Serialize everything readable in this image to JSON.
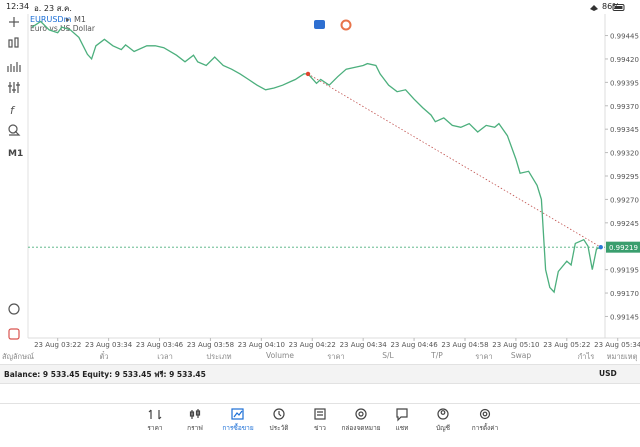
{
  "status_bar": {
    "time": "12:34",
    "date": "อ. 23 ส.ค.",
    "battery": "86%"
  },
  "chart_header": {
    "symbol": "EURUSDm",
    "timeframe": "M1",
    "description": "Euro vs US Dollar"
  },
  "chart": {
    "type": "line",
    "color": "#4caf7d",
    "x": [
      "03:16",
      "03:18",
      "03:20",
      "03:22",
      "03:23",
      "03:25",
      "03:27",
      "03:29",
      "03:30",
      "03:31",
      "03:33",
      "03:35",
      "03:37",
      "03:38",
      "03:40",
      "03:43",
      "03:45",
      "03:47",
      "03:50",
      "03:52",
      "03:54",
      "03:55",
      "03:57",
      "03:59",
      "04:01",
      "04:03",
      "04:05",
      "04:07",
      "04:09",
      "04:11",
      "04:13",
      "04:15",
      "04:17",
      "04:18",
      "04:20",
      "04:21",
      "04:23",
      "04:24",
      "04:26",
      "04:28",
      "04:30",
      "04:32",
      "04:34",
      "04:35",
      "04:37",
      "04:38",
      "04:40",
      "04:42",
      "04:44",
      "04:46",
      "04:48",
      "04:50",
      "04:51",
      "04:53",
      "04:55",
      "04:57",
      "04:59",
      "05:01",
      "05:03",
      "05:05",
      "05:06",
      "05:08",
      "05:10",
      "05:11",
      "05:13",
      "05:15",
      "05:16",
      "05:17",
      "05:18",
      "05:19",
      "05:20",
      "05:22",
      "05:23",
      "05:24",
      "05:26",
      "05:27",
      "05:28",
      "05:29",
      "05:30"
    ],
    "values": [
      0.99454,
      0.9946,
      0.99451,
      0.99448,
      0.99454,
      0.99451,
      0.99443,
      0.99425,
      0.9942,
      0.99434,
      0.99441,
      0.99434,
      0.9943,
      0.99435,
      0.99428,
      0.99434,
      0.99434,
      0.99432,
      0.99424,
      0.99417,
      0.99424,
      0.99417,
      0.99413,
      0.99422,
      0.99413,
      0.99409,
      0.99404,
      0.99398,
      0.99392,
      0.99387,
      0.99389,
      0.99392,
      0.99396,
      0.99398,
      0.99404,
      0.99404,
      0.99394,
      0.99398,
      0.99392,
      0.99401,
      0.99409,
      0.99411,
      0.99413,
      0.99415,
      0.99413,
      0.99404,
      0.99392,
      0.99385,
      0.99387,
      0.99377,
      0.99368,
      0.9936,
      0.99353,
      0.99357,
      0.99349,
      0.99347,
      0.99351,
      0.99342,
      0.99349,
      0.99347,
      0.99351,
      0.99338,
      0.99313,
      0.99298,
      0.993,
      0.99285,
      0.9927,
      0.99195,
      0.99176,
      0.99171,
      0.99193,
      0.99204,
      0.992,
      0.99223,
      0.99227,
      0.9922,
      0.99195,
      0.99217,
      0.99219
    ],
    "xlim": [
      "03:15",
      "05:31"
    ],
    "xticks": [
      {
        "value": "03:22",
        "label": "23 Aug 03:22"
      },
      {
        "value": "03:34",
        "label": "23 Aug 03:34"
      },
      {
        "value": "03:46",
        "label": "23 Aug 03:46"
      },
      {
        "value": "03:58",
        "label": "23 Aug 03:58"
      },
      {
        "value": "04:10",
        "label": "23 Aug 04:10"
      },
      {
        "value": "04:22",
        "label": "23 Aug 04:22"
      },
      {
        "value": "04:34",
        "label": "23 Aug 04:34"
      },
      {
        "value": "04:46",
        "label": "23 Aug 04:46"
      },
      {
        "value": "04:58",
        "label": "23 Aug 04:58"
      },
      {
        "value": "05:10",
        "label": "23 Aug 05:10"
      },
      {
        "value": "05:22",
        "label": "23 Aug 05:22"
      },
      {
        "value": "05:34",
        "label": "23 Aug 05:34"
      }
    ],
    "ylim": [
      0.99122,
      0.99468
    ],
    "yticks": [
      0.99445,
      {
        "value": 0.9942,
        "label": "0.99420"
      },
      0.99395,
      {
        "value": 0.9937,
        "label": "0.99370"
      },
      0.99345,
      {
        "value": 0.9932,
        "label": "0.99320"
      },
      0.99295,
      {
        "value": 0.9927,
        "label": "0.99270"
      },
      0.99245,
      0.99195,
      {
        "value": 0.9917,
        "label": "0.99170"
      },
      0.99145
    ],
    "current_price": 0.99219,
    "entry": {
      "x": "04:21",
      "y": 0.99404
    }
  },
  "positions_table": {
    "columns": [
      "สัญลักษณ์",
      "ตั๋ว",
      "เวลา",
      "ประเภท",
      "Volume",
      "ราคา",
      "S/L",
      "T/P",
      "ราคา",
      "Swap",
      "กำไร",
      "หมายเหตุ"
    ]
  },
  "account": {
    "summary": "Balance: 9 533.45 Equity: 9 533.45 ฟรี: 9 533.45",
    "currency": "USD"
  },
  "nav": {
    "items": [
      "ราคา",
      "กราฟ",
      "การซื้อขาย",
      "ประวัติ",
      "ข่าว",
      "กล่องจดหมาย",
      "แชท",
      "บัญชี",
      "การตั้งค่า"
    ]
  }
}
